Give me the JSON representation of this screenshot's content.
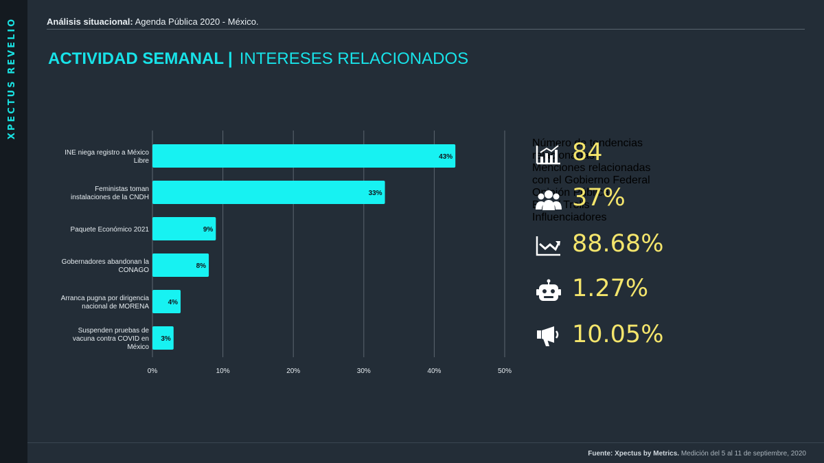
{
  "brand": "XPECTUS REVELIO",
  "header": {
    "bold": "Análisis situacional:",
    "text": " Agenda Pública 2020 - México."
  },
  "title": {
    "bold": "ACTIVIDAD SEMANAL",
    "separator": "|",
    "rest": "INTERESES RELACIONADOS"
  },
  "chart_data": {
    "type": "bar",
    "orientation": "horizontal",
    "categories": [
      [
        "INE niega registro a México",
        "Libre"
      ],
      [
        "Feministas toman",
        "instalaciones de la CNDH"
      ],
      [
        "Paquete Económico 2021"
      ],
      [
        "Gobernadores abandonan la",
        "CONAGO"
      ],
      [
        "Arranca pugna por dirigencia",
        "nacional de MORENA"
      ],
      [
        "Suspenden pruebas de",
        "vacuna contra COVID en",
        "México"
      ]
    ],
    "values": [
      43,
      33,
      9,
      8,
      4,
      3
    ],
    "data_labels": [
      "43%",
      "33%",
      "9%",
      "8%",
      "4%",
      "3%"
    ],
    "xticks": [
      "0%",
      "10%",
      "20%",
      "30%",
      "40%",
      "50%"
    ],
    "xlim": [
      0,
      50
    ],
    "grid": true,
    "colors": {
      "bar": "#17f2f2",
      "grid": "#5c6670",
      "text": "#e6ecf0"
    }
  },
  "metrics": [
    {
      "icon": "bar-chart-icon",
      "value": "84",
      "label": [
        "Número de tendencias",
        "relacionadas"
      ]
    },
    {
      "icon": "group-icon",
      "value": "37%",
      "label": [
        "Menciones relacionadas",
        "con el Gobierno Federal"
      ]
    },
    {
      "icon": "trend-chart-icon",
      "value": "88.68%",
      "label": [
        "Opinión Pública"
      ]
    },
    {
      "icon": "robot-icon",
      "value": "1.27%",
      "label": [
        "Bots / Trolls"
      ]
    },
    {
      "icon": "megaphone-icon",
      "value": "10.05%",
      "label": [
        "Influenciadores"
      ]
    }
  ],
  "footer": {
    "bold": "Fuente: Xpectus by Metrics.",
    "text": " Medición del 5 al 11 de septiembre, 2020"
  },
  "colors": {
    "accent": "#18e2e8",
    "value": "#f4e56c",
    "background": "#232d37",
    "sidebar": "#141a20"
  }
}
